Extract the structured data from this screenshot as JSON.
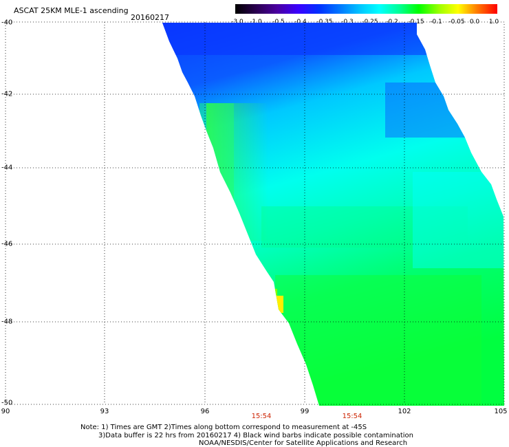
{
  "title": "ASCAT 25KM MLE-1 ascending",
  "date": "20160217",
  "colorbar": {
    "labels": [
      "-3.0",
      "-1.0",
      "-0.5",
      "-0.4",
      "-0.35",
      "-0.3",
      "-0.25",
      "-0.2",
      "-0.15",
      "-0.1",
      "-0.05",
      "0.0",
      "1.0"
    ]
  },
  "map": {
    "lat_labels": [
      "-40",
      "-42",
      "-44",
      "-46",
      "-48",
      "-50"
    ],
    "lon_labels": [
      "90",
      "93",
      "96",
      "99",
      "102",
      "105"
    ],
    "time_labels": [
      "15:54",
      "15:54"
    ]
  },
  "notes": {
    "line1": "Note: 1) Times are GMT 2)Times along bottom correspond to measurement at -45S",
    "line2": "3)Data buffer is 22 hrs from 20160217 4) Black wind barbs indicate possible contamination",
    "line3": "NOAA/NESDIS/Center for Satellite Applications and Research"
  }
}
